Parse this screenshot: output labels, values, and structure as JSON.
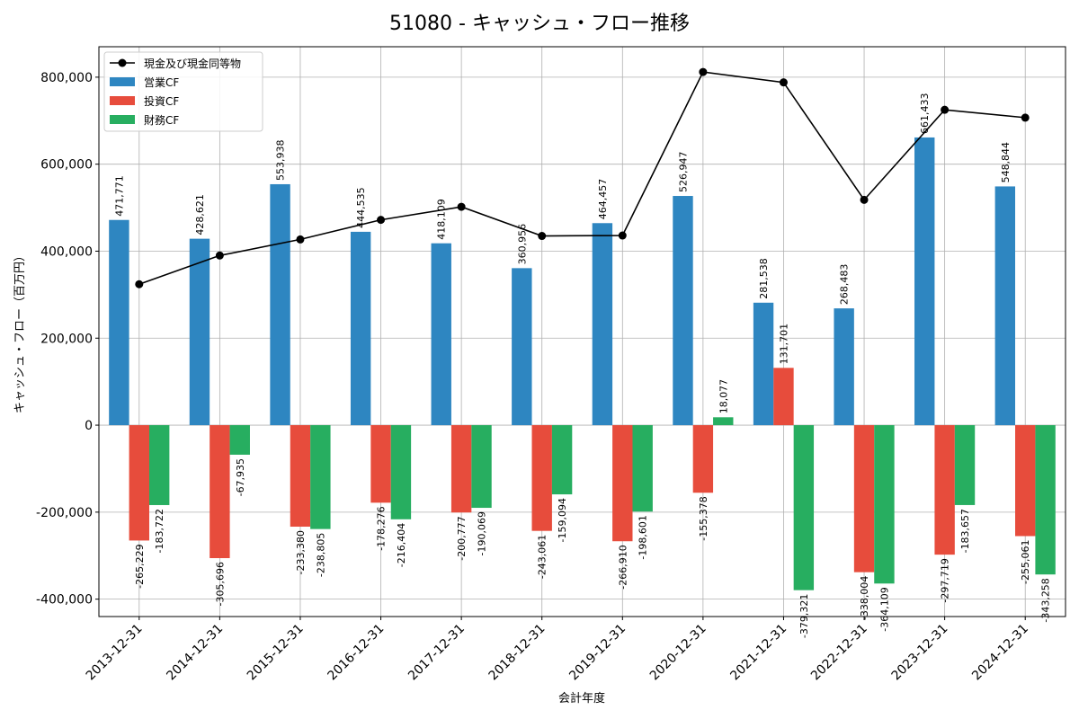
{
  "chart_data": {
    "type": "bar",
    "title": "51080 - キャッシュ・フロー推移",
    "xlabel": "会計年度",
    "ylabel": "キャッシュ・フロー（百万円）",
    "ylim": [
      -440000,
      870000
    ],
    "yticks": [
      -400000,
      -200000,
      0,
      200000,
      400000,
      600000,
      800000
    ],
    "ytick_labels": [
      "-400,000",
      "-200,000",
      "0",
      "200,000",
      "400,000",
      "600,000",
      "800,000"
    ],
    "grid": true,
    "legend_position": "top-left",
    "categories": [
      "2013-12-31",
      "2014-12-31",
      "2015-12-31",
      "2016-12-31",
      "2017-12-31",
      "2018-12-31",
      "2019-12-31",
      "2020-12-31",
      "2021-12-31",
      "2022-12-31",
      "2023-12-31",
      "2024-12-31"
    ],
    "series": [
      {
        "name": "営業CF",
        "kind": "bar",
        "color": "#2e86c1",
        "values": [
          471771,
          428621,
          553938,
          444535,
          418109,
          360956,
          464457,
          526947,
          281538,
          268483,
          661433,
          548844
        ],
        "labels": [
          "471,771",
          "428,621",
          "553,938",
          "444,535",
          "418,109",
          "360,956",
          "464,457",
          "526,947",
          "281,538",
          "268,483",
          "661,433",
          "548,844"
        ]
      },
      {
        "name": "投資CF",
        "kind": "bar",
        "color": "#e74c3c",
        "values": [
          -265229,
          -305696,
          -233380,
          -178276,
          -200777,
          -243061,
          -266910,
          -155378,
          131701,
          -338004,
          -297719,
          -255061
        ],
        "labels": [
          "-265,229",
          "-305,696",
          "-233,380",
          "-178,276",
          "-200,777",
          "-243,061",
          "-266,910",
          "-155,378",
          "131,701",
          "-338,004",
          "-297,719",
          "-255,061"
        ]
      },
      {
        "name": "財務CF",
        "kind": "bar",
        "color": "#27ae60",
        "values": [
          -183722,
          -67935,
          -238805,
          -216404,
          -190069,
          -159094,
          -198601,
          18077,
          -379321,
          -364109,
          -183657,
          -343258
        ],
        "labels": [
          "-183,722",
          "-67,935",
          "-238,805",
          "-216,404",
          "-190,069",
          "-159,094",
          "-198,601",
          "18,077",
          "-379,321",
          "-364,109",
          "-183,657",
          "-343,258"
        ]
      },
      {
        "name": "現金及び現金同等物",
        "kind": "line",
        "color": "#000000",
        "values": [
          324000,
          390000,
          427000,
          472000,
          502000,
          435000,
          436000,
          812000,
          788000,
          518000,
          725000,
          707000
        ]
      }
    ]
  }
}
